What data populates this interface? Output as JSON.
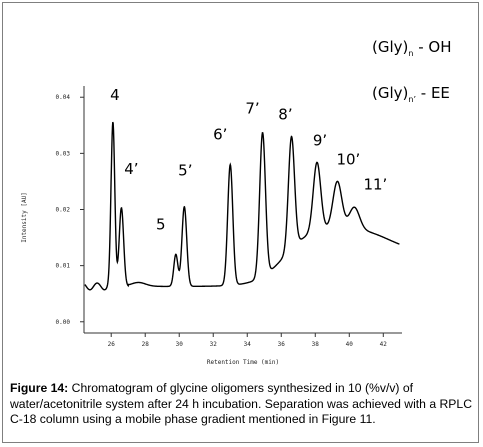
{
  "chart_data": {
    "type": "line",
    "title": "",
    "xlabel": "Retention Time (min)",
    "ylabel": "Intensity [AU]",
    "xlim": [
      24.4,
      43.1
    ],
    "ylim": [
      -0.002,
      0.042
    ],
    "x_ticks": [
      "26",
      "28",
      "30",
      "32",
      "34",
      "36",
      "38",
      "40",
      "42"
    ],
    "y_ticks": [
      "0.00",
      "0.01",
      "0.02",
      "0.03",
      "0.04"
    ],
    "grid": false,
    "baseline": 0.0063,
    "series": [
      {
        "name": "",
        "peaks": [
          {
            "label": "4",
            "x": 26.1,
            "y": 0.0356
          },
          {
            "label": "4’",
            "x": 26.6,
            "y": 0.0203
          },
          {
            "label": "5",
            "x": 29.8,
            "y": 0.012
          },
          {
            "label": "5’",
            "x": 30.3,
            "y": 0.0205
          },
          {
            "label": "6’",
            "x": 33.0,
            "y": 0.028
          },
          {
            "label": "7’",
            "x": 34.9,
            "y": 0.0337
          },
          {
            "label": "8’",
            "x": 36.6,
            "y": 0.033
          },
          {
            "label": "9’",
            "x": 38.1,
            "y": 0.0284
          },
          {
            "label": "10’",
            "x": 39.3,
            "y": 0.025
          },
          {
            "label": "11’",
            "x": 40.3,
            "y": 0.0204
          }
        ]
      }
    ],
    "legend": {
      "placement": "top-right",
      "entries": [
        {
          "main": "(Gly)",
          "sub": "n",
          "rest": " - OH"
        },
        {
          "main": "(Gly)",
          "sub": "n’",
          "rest": " - EE"
        }
      ]
    }
  },
  "caption": {
    "label": "Figure 14:",
    "text": " Chromatogram of glycine oligomers synthesized in 10 (%v/v) of water/acetonitrile system after 24 h incubation. Separation was achieved with a RPLC C-18 column using a mobile phase gradient mentioned in Figure 11."
  }
}
